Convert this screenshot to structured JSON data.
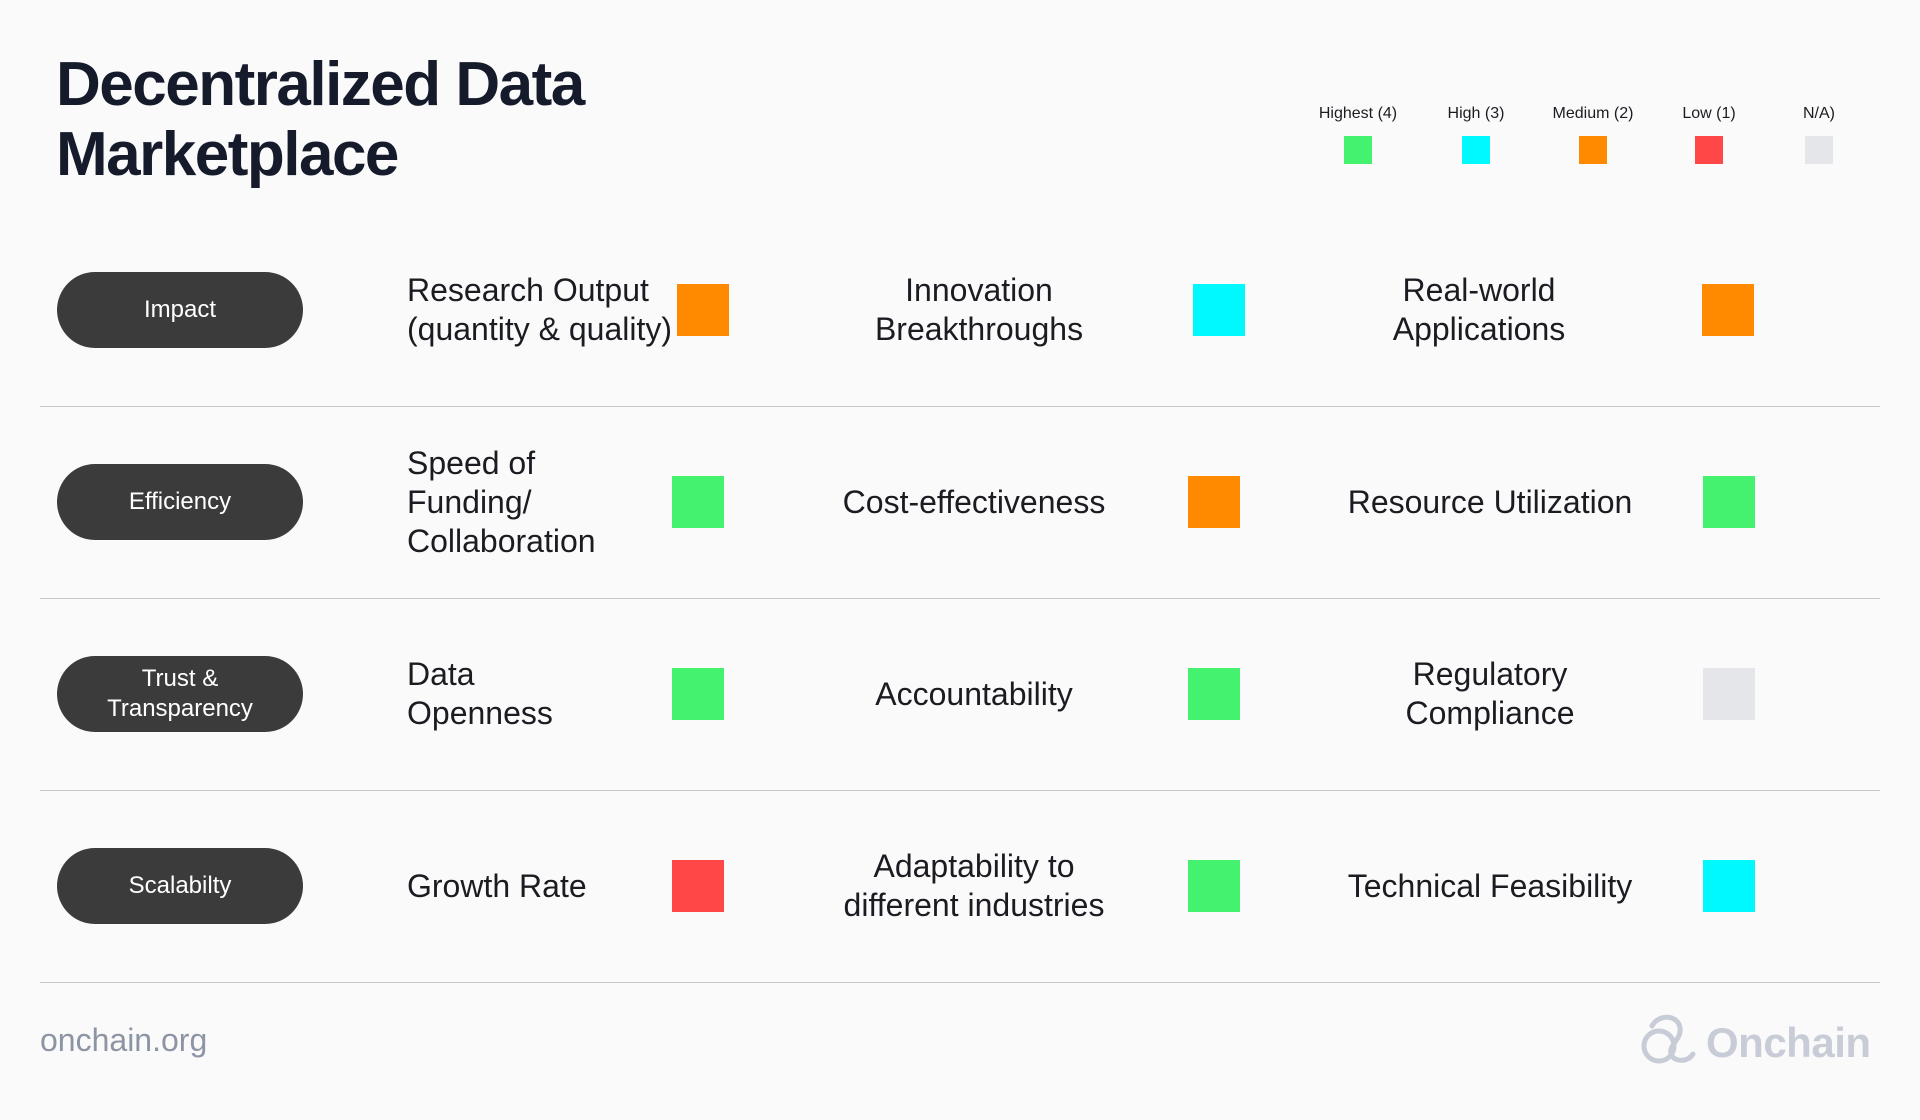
{
  "title_line1": "Decentralized Data",
  "title_line2": "Marketplace",
  "legend": [
    {
      "label": "Highest (4)",
      "color": "#45f26f"
    },
    {
      "label": "High (3)",
      "color": "#00f9ff"
    },
    {
      "label": "Medium (2)",
      "color": "#ff8a00"
    },
    {
      "label": "Low (1)",
      "color": "#ff4747"
    },
    {
      "label": "N/A)",
      "color": "#e5e6ea"
    }
  ],
  "rows": [
    {
      "category": "Impact",
      "metrics": [
        {
          "label": "Research Output (quantity & quality)",
          "rating": "Medium (2)",
          "color": "#ff8a00"
        },
        {
          "label": "Innovation Breakthroughs",
          "rating": "High (3)",
          "color": "#00f9ff"
        },
        {
          "label": "Real-world Applications",
          "rating": "Medium (2)",
          "color": "#ff8a00"
        }
      ]
    },
    {
      "category": "Efficiency",
      "metrics": [
        {
          "label": "Speed of Funding/ Collaboration",
          "rating": "Highest (4)",
          "color": "#45f26f"
        },
        {
          "label": "Cost-effectiveness",
          "rating": "Medium (2)",
          "color": "#ff8a00"
        },
        {
          "label": "Resource Utilization",
          "rating": "Highest (4)",
          "color": "#45f26f"
        }
      ]
    },
    {
      "category": "Trust & Transparency",
      "metrics": [
        {
          "label": "Data Openness",
          "rating": "Highest (4)",
          "color": "#45f26f"
        },
        {
          "label": "Accountability",
          "rating": "Highest (4)",
          "color": "#45f26f"
        },
        {
          "label": "Regulatory Compliance",
          "rating": "N/A)",
          "color": "#e5e6ea"
        }
      ]
    },
    {
      "category": "Scalabilty",
      "metrics": [
        {
          "label": "Growth Rate",
          "rating": "Low (1)",
          "color": "#ff4747"
        },
        {
          "label": "Adaptability to different industries",
          "rating": "Highest (4)",
          "color": "#45f26f"
        },
        {
          "label": "Technical Feasibility",
          "rating": "High (3)",
          "color": "#00f9ff"
        }
      ]
    }
  ],
  "footer": {
    "url": "onchain.org",
    "brand": "Onchain",
    "brand_icon": "onchain-logo-icon"
  }
}
